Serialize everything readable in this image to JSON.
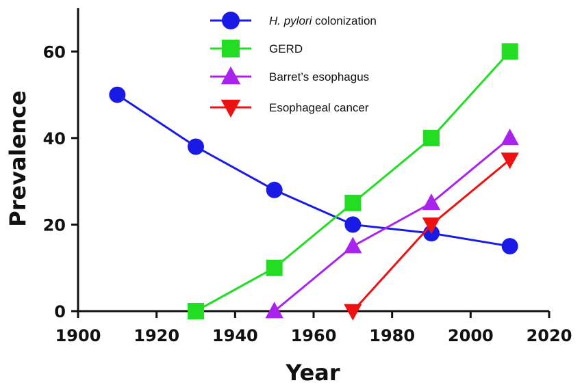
{
  "chart_data": {
    "type": "line",
    "xlabel": "Year",
    "ylabel": "Prevalence",
    "xlim": [
      1900,
      2020
    ],
    "ylim": [
      0,
      70
    ],
    "xticks": [
      1900,
      1920,
      1940,
      1960,
      1980,
      2000,
      2020
    ],
    "yticks": [
      0,
      20,
      40,
      60
    ],
    "grid": false,
    "legend_position": "top-center",
    "series": [
      {
        "name": "H. pylori colonization",
        "name_italic": "H. pylori",
        "name_rest": " colonization",
        "color": "#1a1ae6",
        "marker": "circle",
        "x": [
          1910,
          1930,
          1950,
          1970,
          1990,
          2010
        ],
        "y": [
          50,
          38,
          28,
          20,
          18,
          15
        ]
      },
      {
        "name": "GERD",
        "color": "#22dd22",
        "marker": "square",
        "x": [
          1930,
          1950,
          1970,
          1990,
          2010
        ],
        "y": [
          0,
          10,
          25,
          40,
          60
        ]
      },
      {
        "name": "Barret’s esophagus",
        "color": "#aa22ee",
        "marker": "triangle-up",
        "x": [
          1950,
          1970,
          1990,
          2010
        ],
        "y": [
          0,
          15,
          25,
          40
        ]
      },
      {
        "name": "Esophageal cancer",
        "color": "#ee1111",
        "marker": "triangle-down",
        "x": [
          1970,
          1990,
          2010
        ],
        "y": [
          0,
          20,
          35
        ]
      }
    ]
  }
}
